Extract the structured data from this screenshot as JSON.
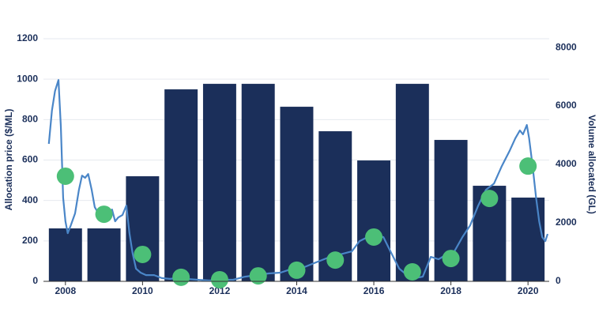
{
  "chart_data": {
    "type": "combo",
    "ylabel": "Allocation price ($/ML)",
    "y2label": "Volume allocated (GL)",
    "xlim": [
      2007.43,
      2020.55
    ],
    "xticks": [
      2008,
      2010,
      2012,
      2014,
      2016,
      2018,
      2020
    ],
    "ylim": [
      0,
      1200
    ],
    "yticks": [
      0,
      200,
      400,
      600,
      800,
      1000,
      1200
    ],
    "y2lim": [
      0,
      8300
    ],
    "y2ticks": [
      0,
      2000,
      4000,
      6000,
      8000
    ],
    "grid": true,
    "series": [
      {
        "type": "bar",
        "axis": "y2",
        "color": "#1b2f5a",
        "x": [
          2008,
          2009,
          2010,
          2011,
          2012,
          2013,
          2014,
          2015,
          2016,
          2017,
          2018,
          2019,
          2020
        ],
        "values": [
          1811,
          1811,
          3595,
          6568,
          6757,
          6757,
          5973,
          5135,
          4135,
          6757,
          4838,
          3270,
          2865
        ]
      },
      {
        "type": "line",
        "axis": "y",
        "color": "#4a86c8",
        "x": [
          2007.57,
          2007.65,
          2007.73,
          2007.82,
          2007.88,
          2007.94,
          2008.0,
          2008.06,
          2008.14,
          2008.25,
          2008.35,
          2008.43,
          2008.51,
          2008.59,
          2008.68,
          2008.76,
          2008.88,
          2009.01,
          2009.13,
          2009.21,
          2009.29,
          2009.37,
          2009.48,
          2009.58,
          2009.66,
          2009.74,
          2009.83,
          2009.95,
          2010.09,
          2010.3,
          2010.5,
          2010.71,
          2010.91,
          2011.12,
          2011.43,
          2011.73,
          2012.04,
          2012.35,
          2012.66,
          2012.96,
          2013.27,
          2013.58,
          2013.89,
          2014.19,
          2014.5,
          2014.81,
          2015.12,
          2015.43,
          2015.63,
          2015.84,
          2016.04,
          2016.25,
          2016.45,
          2016.66,
          2016.86,
          2017.07,
          2017.27,
          2017.48,
          2017.68,
          2017.89,
          2018.09,
          2018.3,
          2018.5,
          2018.71,
          2018.91,
          2019.12,
          2019.32,
          2019.53,
          2019.67,
          2019.79,
          2019.87,
          2019.97,
          2020.03,
          2020.12,
          2020.21,
          2020.29,
          2020.37,
          2020.45,
          2020.51
        ],
        "values": [
          680,
          844,
          941,
          996,
          766,
          414,
          297,
          238,
          277,
          336,
          453,
          523,
          512,
          531,
          453,
          367,
          328,
          305,
          344,
          355,
          297,
          316,
          328,
          375,
          238,
          141,
          63,
          43,
          31,
          31,
          16,
          12,
          16,
          12,
          8,
          4,
          8,
          8,
          23,
          31,
          39,
          43,
          63,
          70,
          94,
          117,
          133,
          148,
          199,
          219,
          227,
          219,
          141,
          63,
          31,
          16,
          23,
          121,
          109,
          133,
          148,
          219,
          277,
          375,
          453,
          484,
          570,
          648,
          707,
          746,
          727,
          773,
          707,
          570,
          414,
          297,
          219,
          199,
          234
        ]
      },
      {
        "type": "scatter",
        "axis": "y",
        "color": "#4cbf77",
        "x": [
          2008,
          2009,
          2010,
          2011,
          2012,
          2013,
          2014,
          2015,
          2016,
          2017,
          2018,
          2019,
          2020
        ],
        "values": [
          520,
          332,
          133,
          20,
          8,
          27,
          55,
          105,
          219,
          47,
          113,
          410,
          570
        ]
      }
    ]
  }
}
